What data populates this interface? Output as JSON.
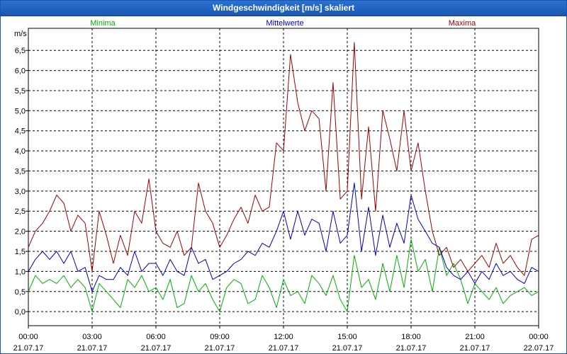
{
  "chart_data": {
    "type": "line",
    "title": "Windgeschwindigkeit [m/s] skaliert",
    "ylabel": "m/s",
    "ylim": [
      -0.35,
      7.05
    ],
    "yticks": [
      0.0,
      0.5,
      1.0,
      1.5,
      2.0,
      2.5,
      3.0,
      3.5,
      4.0,
      4.5,
      5.0,
      5.5,
      6.0,
      6.5
    ],
    "ytick_labels": [
      "0,0",
      "0,5",
      "1,0",
      "1,5",
      "2,0",
      "2,5",
      "3,0",
      "3,5",
      "4,0",
      "4,5",
      "5,0",
      "5,5",
      "6,0",
      "6,5"
    ],
    "xlim": [
      0,
      24
    ],
    "xticks": [
      0,
      3,
      6,
      9,
      12,
      15,
      18,
      21,
      24
    ],
    "xtick_times": [
      "00:00",
      "03:00",
      "06:00",
      "09:00",
      "12:00",
      "15:00",
      "18:00",
      "21:00",
      "00:00"
    ],
    "xtick_dates": [
      "21.07.17",
      "21.07.17",
      "21.07.17",
      "21.07.17",
      "21.07.17",
      "21.07.17",
      "21.07.17",
      "21.07.17",
      "22.07.17"
    ],
    "grid": true,
    "legend_position": "top",
    "series": [
      {
        "name": "Minima",
        "color": "#00b000",
        "x": [
          0.0,
          0.33,
          0.67,
          1.0,
          1.33,
          1.67,
          2.0,
          2.33,
          2.67,
          3.0,
          3.33,
          3.67,
          4.0,
          4.33,
          4.67,
          5.0,
          5.33,
          5.67,
          6.0,
          6.33,
          6.67,
          7.0,
          7.33,
          7.67,
          8.0,
          8.33,
          8.67,
          9.0,
          9.33,
          9.67,
          10.0,
          10.33,
          10.67,
          11.0,
          11.33,
          11.67,
          12.0,
          12.33,
          12.67,
          13.0,
          13.33,
          13.67,
          14.0,
          14.33,
          14.67,
          15.0,
          15.33,
          15.67,
          16.0,
          16.33,
          16.67,
          17.0,
          17.33,
          17.67,
          18.0,
          18.33,
          18.67,
          19.0,
          19.33,
          19.67,
          20.0,
          20.33,
          20.67,
          21.0,
          21.33,
          21.67,
          22.0,
          22.33,
          22.67,
          23.0,
          23.33,
          23.67,
          24.0
        ],
        "values": [
          0.5,
          0.9,
          0.7,
          0.8,
          0.7,
          0.9,
          0.6,
          0.8,
          0.6,
          0.0,
          0.7,
          0.5,
          0.3,
          0.1,
          0.8,
          0.6,
          0.9,
          0.5,
          0.6,
          0.3,
          0.8,
          0.1,
          0.2,
          0.9,
          0.5,
          0.7,
          0.3,
          0.0,
          0.6,
          0.8,
          0.7,
          0.2,
          0.3,
          0.9,
          0.6,
          0.1,
          0.8,
          0.4,
          0.5,
          0.2,
          0.9,
          0.7,
          0.4,
          0.9,
          0.3,
          0.0,
          1.4,
          0.6,
          0.8,
          0.3,
          1.2,
          0.5,
          1.4,
          0.6,
          1.8,
          1.0,
          1.3,
          0.5,
          1.6,
          0.9,
          1.2,
          0.8,
          0.2,
          0.7,
          0.5,
          0.3,
          0.6,
          0.2,
          0.4,
          0.5,
          0.6,
          0.4,
          0.5
        ]
      },
      {
        "name": "Mittelwerte",
        "color": "#0000c0",
        "x": [
          0.0,
          0.33,
          0.67,
          1.0,
          1.33,
          1.67,
          2.0,
          2.33,
          2.67,
          3.0,
          3.33,
          3.67,
          4.0,
          4.33,
          4.67,
          5.0,
          5.33,
          5.67,
          6.0,
          6.33,
          6.67,
          7.0,
          7.33,
          7.67,
          8.0,
          8.33,
          8.67,
          9.0,
          9.33,
          9.67,
          10.0,
          10.33,
          10.67,
          11.0,
          11.33,
          11.67,
          12.0,
          12.33,
          12.67,
          13.0,
          13.33,
          13.67,
          14.0,
          14.33,
          14.67,
          15.0,
          15.33,
          15.67,
          16.0,
          16.33,
          16.67,
          17.0,
          17.33,
          17.67,
          18.0,
          18.33,
          18.67,
          19.0,
          19.33,
          19.67,
          20.0,
          20.33,
          20.67,
          21.0,
          21.33,
          21.67,
          22.0,
          22.33,
          22.67,
          23.0,
          23.33,
          23.67,
          24.0
        ],
        "values": [
          1.0,
          1.3,
          1.5,
          1.3,
          1.5,
          1.2,
          1.5,
          1.0,
          1.1,
          0.5,
          0.9,
          0.8,
          0.8,
          1.1,
          0.9,
          1.5,
          1.0,
          1.2,
          1.2,
          0.9,
          1.3,
          1.0,
          0.9,
          1.6,
          1.2,
          1.3,
          0.8,
          0.9,
          1.0,
          1.2,
          1.3,
          1.5,
          1.4,
          1.7,
          1.6,
          2.0,
          2.5,
          1.8,
          2.5,
          1.9,
          2.3,
          2.2,
          1.5,
          2.5,
          1.7,
          1.9,
          3.2,
          1.5,
          2.6,
          1.4,
          2.4,
          1.6,
          2.2,
          1.7,
          2.9,
          2.3,
          2.0,
          1.7,
          1.6,
          1.1,
          0.9,
          0.8,
          1.0,
          0.7,
          1.0,
          0.8,
          1.2,
          0.9,
          1.0,
          0.8,
          0.7,
          1.1,
          1.0
        ]
      },
      {
        "name": "Maxima",
        "color": "#a00000",
        "x": [
          0.0,
          0.33,
          0.67,
          1.0,
          1.33,
          1.67,
          2.0,
          2.33,
          2.67,
          3.0,
          3.33,
          3.67,
          4.0,
          4.33,
          4.67,
          5.0,
          5.33,
          5.67,
          6.0,
          6.33,
          6.67,
          7.0,
          7.33,
          7.67,
          8.0,
          8.33,
          8.67,
          9.0,
          9.33,
          9.67,
          10.0,
          10.33,
          10.67,
          11.0,
          11.33,
          11.67,
          12.0,
          12.33,
          12.67,
          13.0,
          13.33,
          13.67,
          14.0,
          14.33,
          14.67,
          15.0,
          15.33,
          15.67,
          16.0,
          16.33,
          16.67,
          17.0,
          17.33,
          17.67,
          18.0,
          18.33,
          18.67,
          19.0,
          19.33,
          19.67,
          20.0,
          20.33,
          20.67,
          21.0,
          21.33,
          21.67,
          22.0,
          22.33,
          22.67,
          23.0,
          23.33,
          23.67,
          24.0
        ],
        "values": [
          1.6,
          2.0,
          2.2,
          2.5,
          2.9,
          2.7,
          2.0,
          2.4,
          2.2,
          1.0,
          2.5,
          1.9,
          1.2,
          1.9,
          1.4,
          2.5,
          2.2,
          3.3,
          2.0,
          1.7,
          1.6,
          2.0,
          1.4,
          1.6,
          3.2,
          2.5,
          2.2,
          1.6,
          1.9,
          2.3,
          2.6,
          2.2,
          2.9,
          2.5,
          2.6,
          4.2,
          4.0,
          6.4,
          5.2,
          4.5,
          5.0,
          4.8,
          3.0,
          5.7,
          2.8,
          3.0,
          6.7,
          2.8,
          4.6,
          2.5,
          5.0,
          4.3,
          3.5,
          5.0,
          3.5,
          4.2,
          3.0,
          2.0,
          1.4,
          1.6,
          1.1,
          1.3,
          1.0,
          1.2,
          1.4,
          1.1,
          1.7,
          1.2,
          1.4,
          1.1,
          0.9,
          1.8,
          1.9
        ]
      }
    ]
  }
}
